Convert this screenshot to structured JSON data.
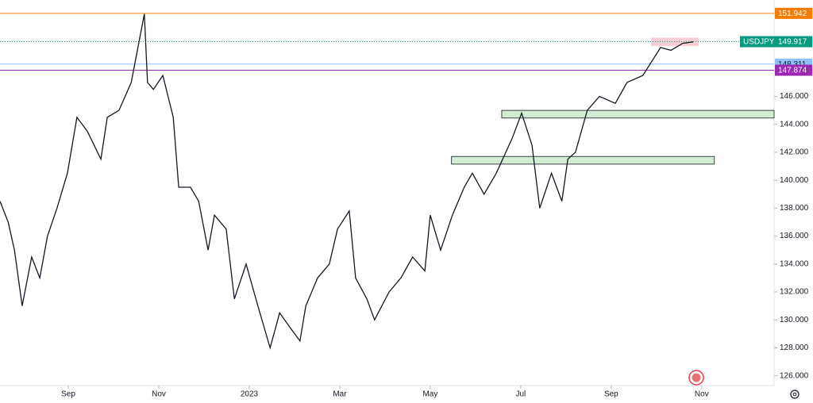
{
  "chart_data": {
    "type": "line",
    "color": "#131722",
    "x": [
      -0.51,
      -0.33,
      -0.19,
      -0.02,
      0.19,
      0.37,
      0.54,
      0.75,
      0.98,
      1.19,
      1.42,
      1.72,
      1.86,
      2.12,
      2.39,
      2.68,
      2.75,
      2.88,
      3.09,
      3.32,
      3.44,
      3.7,
      3.88,
      4.09,
      4.23,
      4.49,
      4.67,
      4.93,
      5.19,
      5.46,
      5.67,
      5.89,
      6.12,
      6.25,
      6.51,
      6.77,
      6.95,
      7.21,
      7.35,
      7.6,
      7.77,
      8.09,
      8.35,
      8.61,
      8.88,
      9.0,
      9.23,
      9.49,
      9.75,
      9.93,
      10.19,
      10.46,
      10.81,
      11.02,
      11.25,
      11.42,
      11.68,
      11.91,
      12.04,
      12.21,
      12.47,
      12.74,
      13.09,
      13.35,
      13.7,
      14.09,
      14.32,
      14.58,
      14.81
    ],
    "values": [
      138.5,
      137,
      135,
      131,
      134.5,
      133,
      136,
      138,
      140.5,
      144.5,
      143.5,
      141.5,
      144.5,
      145,
      147,
      151.9,
      147,
      146.5,
      147.5,
      144.5,
      139.5,
      139.5,
      138.5,
      135,
      137.5,
      136.5,
      131.5,
      134,
      131,
      128,
      130.5,
      129.5,
      128.5,
      131,
      133,
      134,
      136.5,
      137.8,
      133,
      131.5,
      130,
      132,
      133,
      134.5,
      133.5,
      137.5,
      135,
      137.5,
      139.5,
      140.5,
      139,
      140.5,
      143,
      144.8,
      142.5,
      138,
      140.5,
      138.5,
      141.5,
      142,
      145,
      146,
      145.5,
      147,
      147.5,
      149.5,
      149.3,
      149.8,
      149.9
    ],
    "xlim": [
      -0.51,
      16.6
    ],
    "xticks": [
      {
        "value": 1,
        "label": "Sep"
      },
      {
        "value": 3,
        "label": "Nov"
      },
      {
        "value": 5,
        "label": "2023"
      },
      {
        "value": 7,
        "label": "Mar"
      },
      {
        "value": 9,
        "label": "May"
      },
      {
        "value": 11,
        "label": "Jul"
      },
      {
        "value": 13,
        "label": "Sep"
      },
      {
        "value": 15,
        "label": "Nov"
      }
    ],
    "ylim": [
      125.3,
      152.9
    ],
    "yticks": [
      {
        "value": 126,
        "label": "126.000"
      },
      {
        "value": 128,
        "label": "128.000"
      },
      {
        "value": 130,
        "label": "130.000"
      },
      {
        "value": 132,
        "label": "132.000"
      },
      {
        "value": 134,
        "label": "134.000"
      },
      {
        "value": 136,
        "label": "136.000"
      },
      {
        "value": 138,
        "label": "138.000"
      },
      {
        "value": 140,
        "label": "140.000"
      },
      {
        "value": 142,
        "label": "142.000"
      },
      {
        "value": 144,
        "label": "144.000"
      },
      {
        "value": 146,
        "label": "146.000"
      }
    ],
    "price": {
      "name": "USDJPY",
      "value": 149.917,
      "color": "#089981"
    },
    "levels": [
      {
        "value": 151.942,
        "color": "#f57c00"
      },
      {
        "value": 148.311,
        "color": "#90bff9"
      },
      {
        "value": 147.874,
        "color": "#9c27b0"
      }
    ],
    "zones": [
      {
        "x": [
          10.58,
          16.6
        ],
        "y": [
          144.45,
          145.0
        ],
        "color": "#d4ecd4"
      },
      {
        "x": [
          9.47,
          15.28
        ],
        "y": [
          141.15,
          141.7
        ],
        "color": "#d4ecd4"
      },
      {
        "x": [
          13.88,
          14.93
        ],
        "y": [
          149.6,
          150.2
        ],
        "color": "#f7cfd4"
      }
    ]
  }
}
